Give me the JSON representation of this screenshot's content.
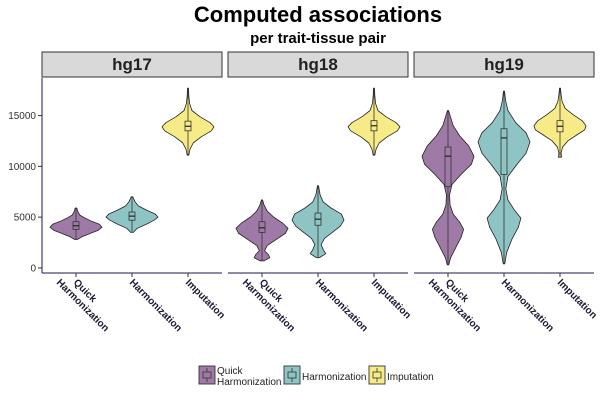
{
  "chart_data": {
    "type": "violin",
    "title": "Computed associations",
    "subtitle": "per trait-tissue pair",
    "xlabel": "",
    "ylabel": "",
    "ylim": [
      -500,
      18700
    ],
    "yticks": [
      0,
      5000,
      10000,
      15000
    ],
    "categories": [
      "Quick Harmonization",
      "Harmonization",
      "Imputation"
    ],
    "category_lines": [
      [
        "Quick",
        "Harmonization"
      ],
      [
        "Harmonization"
      ],
      [
        "Imputation"
      ]
    ],
    "colors": {
      "Quick Harmonization": "#9f7aa6",
      "Harmonization": "#8ec5c4",
      "Imputation": "#f7eb88"
    },
    "grid": false,
    "legend_position": "bottom",
    "panels": [
      {
        "label": "hg17",
        "violins": [
          {
            "category": "Quick Harmonization",
            "min": 2800,
            "max": 5900,
            "q1": 3800,
            "median": 4150,
            "q3": 4550,
            "density": [
              [
                2800,
                0.05
              ],
              [
                3100,
                0.25
              ],
              [
                3400,
                0.55
              ],
              [
                3700,
                0.85
              ],
              [
                4000,
                1.0
              ],
              [
                4300,
                0.9
              ],
              [
                4600,
                0.6
              ],
              [
                4900,
                0.35
              ],
              [
                5200,
                0.15
              ],
              [
                5500,
                0.08
              ],
              [
                5900,
                0.03
              ]
            ]
          },
          {
            "category": "Harmonization",
            "min": 3500,
            "max": 7000,
            "q1": 4700,
            "median": 5100,
            "q3": 5500,
            "density": [
              [
                3500,
                0.05
              ],
              [
                3900,
                0.2
              ],
              [
                4300,
                0.55
              ],
              [
                4700,
                0.85
              ],
              [
                5000,
                1.0
              ],
              [
                5300,
                0.9
              ],
              [
                5700,
                0.55
              ],
              [
                6100,
                0.25
              ],
              [
                6500,
                0.12
              ],
              [
                7000,
                0.03
              ]
            ]
          },
          {
            "category": "Imputation",
            "min": 11100,
            "max": 17700,
            "q1": 13500,
            "median": 13950,
            "q3": 14450,
            "density": [
              [
                11100,
                0.03
              ],
              [
                11700,
                0.08
              ],
              [
                12300,
                0.2
              ],
              [
                12900,
                0.5
              ],
              [
                13500,
                0.9
              ],
              [
                13900,
                1.0
              ],
              [
                14300,
                0.85
              ],
              [
                14900,
                0.45
              ],
              [
                15500,
                0.15
              ],
              [
                16200,
                0.06
              ],
              [
                17000,
                0.03
              ],
              [
                17700,
                0.02
              ]
            ]
          }
        ]
      },
      {
        "label": "hg18",
        "violins": [
          {
            "category": "Quick Harmonization",
            "min": 700,
            "max": 6700,
            "q1": 3500,
            "median": 3950,
            "q3": 4550,
            "density": [
              [
                700,
                0.08
              ],
              [
                1000,
                0.3
              ],
              [
                1300,
                0.25
              ],
              [
                1700,
                0.1
              ],
              [
                2200,
                0.2
              ],
              [
                2800,
                0.55
              ],
              [
                3400,
                0.9
              ],
              [
                3900,
                1.0
              ],
              [
                4400,
                0.8
              ],
              [
                5000,
                0.45
              ],
              [
                5600,
                0.2
              ],
              [
                6200,
                0.08
              ],
              [
                6700,
                0.02
              ]
            ]
          },
          {
            "category": "Harmonization",
            "min": 1000,
            "max": 8100,
            "q1": 4200,
            "median": 4800,
            "q3": 5400,
            "density": [
              [
                1000,
                0.05
              ],
              [
                1400,
                0.3
              ],
              [
                1800,
                0.2
              ],
              [
                2300,
                0.12
              ],
              [
                2900,
                0.25
              ],
              [
                3500,
                0.55
              ],
              [
                4100,
                0.85
              ],
              [
                4700,
                1.0
              ],
              [
                5300,
                0.9
              ],
              [
                5900,
                0.5
              ],
              [
                6500,
                0.2
              ],
              [
                7200,
                0.08
              ],
              [
                8100,
                0.02
              ]
            ]
          },
          {
            "category": "Imputation",
            "min": 11100,
            "max": 17700,
            "q1": 13500,
            "median": 14000,
            "q3": 14500,
            "density": [
              [
                11100,
                0.03
              ],
              [
                11700,
                0.08
              ],
              [
                12300,
                0.2
              ],
              [
                12900,
                0.5
              ],
              [
                13500,
                0.9
              ],
              [
                13900,
                1.0
              ],
              [
                14300,
                0.85
              ],
              [
                14900,
                0.45
              ],
              [
                15500,
                0.15
              ],
              [
                16200,
                0.06
              ],
              [
                17000,
                0.03
              ],
              [
                17700,
                0.02
              ]
            ]
          }
        ]
      },
      {
        "label": "hg19",
        "violins": [
          {
            "category": "Quick Harmonization",
            "min": 300,
            "max": 15500,
            "q1": 8000,
            "median": 11000,
            "q3": 11900,
            "density": [
              [
                300,
                0.03
              ],
              [
                1000,
                0.1
              ],
              [
                2000,
                0.3
              ],
              [
                3000,
                0.5
              ],
              [
                3800,
                0.6
              ],
              [
                4500,
                0.45
              ],
              [
                5300,
                0.2
              ],
              [
                6200,
                0.08
              ],
              [
                7200,
                0.06
              ],
              [
                8200,
                0.15
              ],
              [
                9200,
                0.5
              ],
              [
                10200,
                0.9
              ],
              [
                11000,
                1.0
              ],
              [
                12000,
                0.8
              ],
              [
                13000,
                0.45
              ],
              [
                14000,
                0.2
              ],
              [
                15500,
                0.02
              ]
            ]
          },
          {
            "category": "Harmonization",
            "min": 400,
            "max": 17400,
            "q1": 9200,
            "median": 12800,
            "q3": 13700,
            "density": [
              [
                400,
                0.03
              ],
              [
                1500,
                0.1
              ],
              [
                2800,
                0.3
              ],
              [
                4000,
                0.55
              ],
              [
                4900,
                0.65
              ],
              [
                5700,
                0.4
              ],
              [
                6700,
                0.15
              ],
              [
                7800,
                0.07
              ],
              [
                9000,
                0.15
              ],
              [
                10200,
                0.5
              ],
              [
                11300,
                0.85
              ],
              [
                12400,
                1.0
              ],
              [
                13300,
                0.85
              ],
              [
                14300,
                0.45
              ],
              [
                15500,
                0.15
              ],
              [
                16500,
                0.06
              ],
              [
                17400,
                0.02
              ]
            ]
          },
          {
            "category": "Imputation",
            "min": 10900,
            "max": 17700,
            "q1": 13400,
            "median": 13950,
            "q3": 14500,
            "density": [
              [
                10900,
                0.06
              ],
              [
                11300,
                0.04
              ],
              [
                11900,
                0.1
              ],
              [
                12500,
                0.3
              ],
              [
                13100,
                0.65
              ],
              [
                13600,
                0.95
              ],
              [
                14000,
                1.0
              ],
              [
                14500,
                0.85
              ],
              [
                15100,
                0.5
              ],
              [
                15700,
                0.2
              ],
              [
                16400,
                0.08
              ],
              [
                17100,
                0.04
              ],
              [
                17700,
                0.02
              ]
            ]
          }
        ]
      }
    ]
  }
}
